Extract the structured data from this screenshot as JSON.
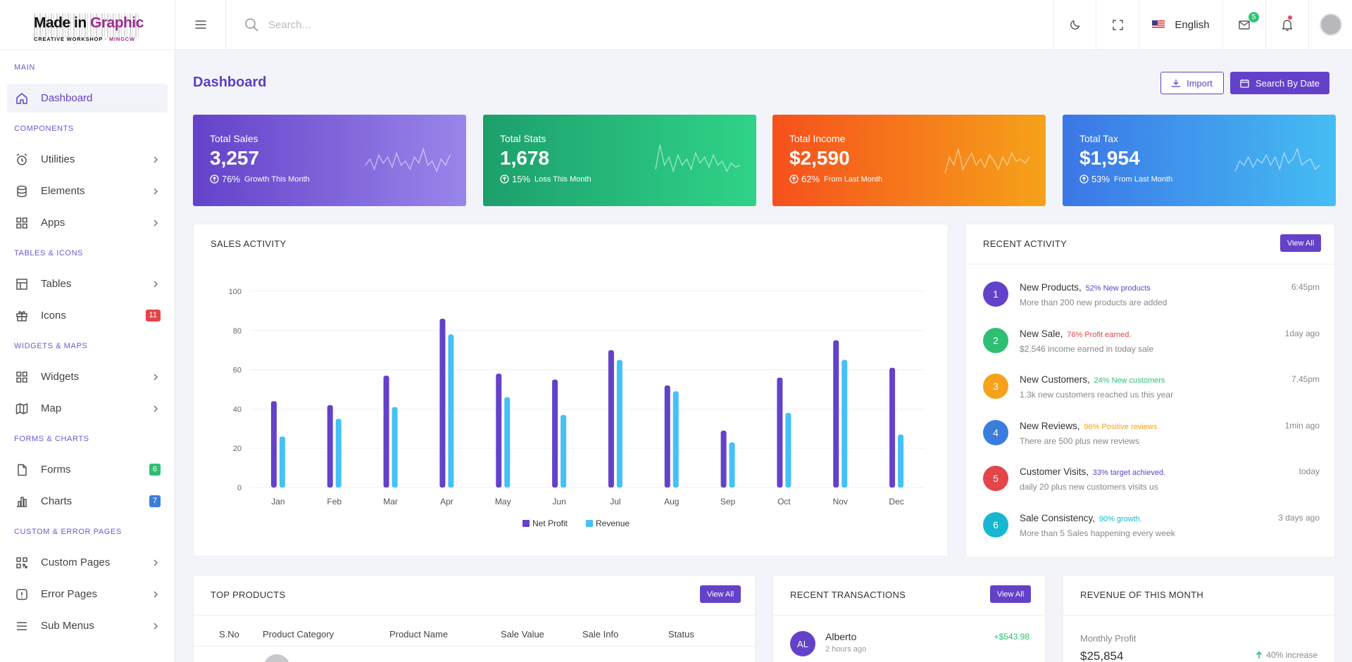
{
  "logo": {
    "part1": "Made in ",
    "part2": "Graphic",
    "sub1": "CREATIVE WORKSHOP · ",
    "sub2": "MINGCW"
  },
  "header": {
    "search_placeholder": "Search...",
    "language": "English",
    "mail_count": "5"
  },
  "sidebar": {
    "sections": [
      {
        "title": "Main",
        "items": [
          {
            "label": "Dashboard",
            "icon": "home-icon",
            "active": true
          }
        ]
      },
      {
        "title": "Components",
        "items": [
          {
            "label": "Utilities",
            "icon": "alarm-icon",
            "chevron": true
          },
          {
            "label": "Elements",
            "icon": "database-icon",
            "chevron": true
          },
          {
            "label": "Apps",
            "icon": "apps-icon",
            "chevron": true
          }
        ]
      },
      {
        "title": "Tables & Icons",
        "items": [
          {
            "label": "Tables",
            "icon": "table-icon",
            "chevron": true
          },
          {
            "label": "Icons",
            "icon": "gift-icon",
            "badge": "11",
            "badge_color": "#e4454a"
          }
        ]
      },
      {
        "title": "Widgets & Maps",
        "items": [
          {
            "label": "Widgets",
            "icon": "apps-icon",
            "chevron": true
          },
          {
            "label": "Map",
            "icon": "map-icon",
            "chevron": true
          }
        ]
      },
      {
        "title": "Forms & Charts",
        "items": [
          {
            "label": "Forms",
            "icon": "file-icon",
            "badge": "6",
            "badge_color": "#2ebf73"
          },
          {
            "label": "Charts",
            "icon": "bar-chart-icon",
            "badge": "7",
            "badge_color": "#3b7ddd"
          }
        ]
      },
      {
        "title": "Custom & Error Pages",
        "items": [
          {
            "label": "Custom Pages",
            "icon": "qr-icon",
            "chevron": true
          },
          {
            "label": "Error Pages",
            "icon": "alert-icon",
            "chevron": true
          },
          {
            "label": "Sub Menus",
            "icon": "menu-icon",
            "chevron": true
          }
        ]
      }
    ]
  },
  "page": {
    "title": "Dashboard",
    "import_label": "Import",
    "search_date_label": "Search By Date"
  },
  "stats": [
    {
      "title": "Total Sales",
      "value": "3,257",
      "pct": "76%",
      "note": "Growth This Month",
      "from": "#6342c9",
      "to": "#9a85ea"
    },
    {
      "title": "Total Stats",
      "value": "1,678",
      "pct": "15%",
      "note": "Loss This Month",
      "from": "#1d9f6c",
      "to": "#2fd388"
    },
    {
      "title": "Total Income",
      "value": "$2,590",
      "pct": "62%",
      "note": "From Last Month",
      "from": "#f6501c",
      "to": "#f6a21a"
    },
    {
      "title": "Total Tax",
      "value": "$1,954",
      "pct": "53%",
      "note": "From Last Month",
      "from": "#3b76e6",
      "to": "#45bdf3"
    }
  ],
  "sales_activity": {
    "title": "SALES ACTIVITY",
    "chart_data": {
      "type": "bar",
      "categories": [
        "Jan",
        "Feb",
        "Mar",
        "Apr",
        "May",
        "Jun",
        "Jul",
        "Aug",
        "Sep",
        "Oct",
        "Nov",
        "Dec"
      ],
      "series": [
        {
          "name": "Net Profit",
          "color": "#6342c9",
          "values": [
            44,
            42,
            57,
            86,
            58,
            55,
            70,
            52,
            29,
            56,
            75,
            61
          ]
        },
        {
          "name": "Revenue",
          "color": "#45c1f7",
          "values": [
            26,
            35,
            41,
            78,
            46,
            37,
            65,
            49,
            23,
            38,
            65,
            27
          ]
        }
      ],
      "yticks": [
        "0",
        "20",
        "40",
        "60",
        "80",
        "100"
      ],
      "ylim": [
        0,
        100
      ],
      "legend": "bottom-center"
    }
  },
  "recent_activity": {
    "title": "RECENT ACTIVITY",
    "view_all": "View All",
    "items": [
      {
        "num": "1",
        "color": "#6342c9",
        "head": "New Products,",
        "hl": "52% New products",
        "hl_color": "#6342c9",
        "sub": "More than 200 new products are added",
        "time": "6:45pm"
      },
      {
        "num": "2",
        "color": "#2ebf73",
        "head": "New Sale,",
        "hl": "76% Profit earned.",
        "hl_color": "#e4454a",
        "sub": "$2,546 income earned in today sale",
        "time": "1day ago"
      },
      {
        "num": "3",
        "color": "#f6a21a",
        "head": "New Customers,",
        "hl": "24% New customers",
        "hl_color": "#2ebf73",
        "sub": "1.3k new customers reached us this year",
        "time": "7.45pm"
      },
      {
        "num": "4",
        "color": "#3b7ddd",
        "head": "New Reviews,",
        "hl": "96% Positive reviews.",
        "hl_color": "#f6a21a",
        "sub": "There are 500 plus new reviews",
        "time": "1min ago"
      },
      {
        "num": "5",
        "color": "#e4454a",
        "head": "Customer Visits,",
        "hl": "33% target achieved.",
        "hl_color": "#6342c9",
        "sub": "daily 20 plus new customers visits us",
        "time": "today"
      },
      {
        "num": "6",
        "color": "#17b6d1",
        "head": "Sale Consistency,",
        "hl": "90% growth.",
        "hl_color": "#17b6d1",
        "sub": "More than 5 Sales happening every week",
        "time": "3 days ago"
      }
    ]
  },
  "top_products": {
    "title": "TOP PRODUCTS",
    "view_all": "View All",
    "columns": [
      "S.No",
      "Product Category",
      "Product Name",
      "Sale Value",
      "Sale Info",
      "Status"
    ]
  },
  "recent_transactions": {
    "title": "RECENT TRANSACTIONS",
    "view_all": "View All",
    "items": [
      {
        "initials": "AL",
        "name": "Alberto",
        "time": "2 hours ago",
        "amount": "+$543.98"
      }
    ]
  },
  "revenue_month": {
    "title": "REVENUE OF THIS MONTH",
    "label": "Monthly Profit",
    "value": "$25,854",
    "change": "40% increase"
  },
  "sparklines": [
    [
      0.6,
      0.45,
      0.7,
      0.35,
      0.55,
      0.4,
      0.65,
      0.3,
      0.6,
      0.5,
      0.7,
      0.4,
      0.55,
      0.2,
      0.6,
      0.5,
      0.75,
      0.45,
      0.6,
      0.35
    ],
    [
      0.7,
      0.1,
      0.6,
      0.4,
      0.75,
      0.35,
      0.6,
      0.45,
      0.7,
      0.3,
      0.55,
      0.4,
      0.65,
      0.35,
      0.6,
      0.5,
      0.75,
      0.55,
      0.65,
      0.6
    ],
    [
      0.8,
      0.4,
      0.6,
      0.2,
      0.7,
      0.5,
      0.3,
      0.6,
      0.45,
      0.65,
      0.35,
      0.5,
      0.7,
      0.4,
      0.6,
      0.3,
      0.5,
      0.45,
      0.55,
      0.4
    ],
    [
      0.75,
      0.5,
      0.6,
      0.4,
      0.65,
      0.45,
      0.55,
      0.35,
      0.6,
      0.4,
      0.7,
      0.3,
      0.55,
      0.45,
      0.2,
      0.6,
      0.5,
      0.45,
      0.7,
      0.6
    ]
  ]
}
